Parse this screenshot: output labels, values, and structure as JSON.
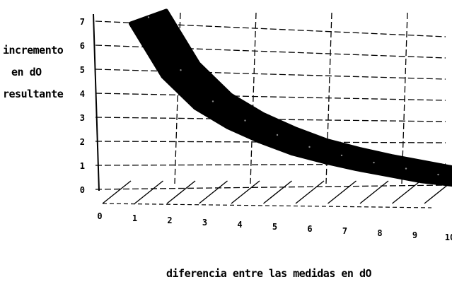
{
  "chart_data": {
    "type": "area",
    "ylabel_lines": [
      "incremento",
      "en dO",
      "resultante"
    ],
    "xlabel": "diferencia entre las medidas en dO",
    "x_ticks": [
      "0",
      "1",
      "2",
      "3",
      "4",
      "5",
      "6",
      "7",
      "8",
      "9",
      "10"
    ],
    "y_ticks": [
      "0",
      "1",
      "2",
      "3",
      "4",
      "5",
      "6",
      "7"
    ],
    "xlim": [
      0,
      10
    ],
    "ylim": [
      0,
      7
    ],
    "grid": true,
    "series": [
      {
        "x": [
          0,
          1,
          2,
          3,
          4,
          5,
          6,
          7,
          8,
          9,
          10
        ],
        "values": [
          6.9,
          4.7,
          3.4,
          2.6,
          2.0,
          1.5,
          1.15,
          0.85,
          0.6,
          0.35,
          0.2
        ]
      }
    ],
    "fill_color": "#000000"
  }
}
